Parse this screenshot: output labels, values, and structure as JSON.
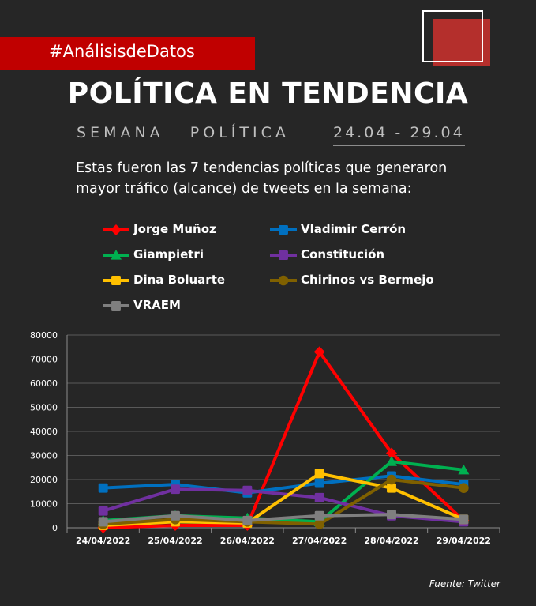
{
  "header": {
    "hashtag": "#AnálisisdeDatos",
    "title": "POLÍTICA EN TENDENCIA",
    "subtitle": "SEMANA   POLÍTICA",
    "dates": "24.04 - 29.04",
    "intro": "Estas fueron las 7 tendencias políticas que generaron mayor tráfico (alcance) de tweets en la semana:"
  },
  "source": "Fuente: Twitter",
  "colors": {
    "background": "#262626",
    "brand_red": "#c00000",
    "grid": "#595959"
  },
  "chart_data": {
    "type": "line",
    "categories": [
      "24/04/2022",
      "25/04/2022",
      "26/04/2022",
      "27/04/2022",
      "28/04/2022",
      "29/04/2022"
    ],
    "ylim": [
      0,
      80000
    ],
    "yticks": [
      "80000",
      "70000",
      "60000",
      "50000",
      "40000",
      "30000",
      "20000",
      "10000",
      "0"
    ],
    "grid": true,
    "legend_position": "top",
    "series": [
      {
        "name": "Jorge Muñoz",
        "color": "#ff0000",
        "marker": "diamond",
        "values": [
          0,
          1000,
          1000,
          73000,
          31000,
          3000
        ]
      },
      {
        "name": "Vladimir Cerrón",
        "color": "#0070c0",
        "marker": "square",
        "values": [
          16500,
          18000,
          14500,
          18500,
          21500,
          18000
        ]
      },
      {
        "name": "Giampietri",
        "color": "#00b050",
        "marker": "triangle",
        "values": [
          3000,
          5000,
          4000,
          2500,
          27500,
          24000
        ]
      },
      {
        "name": "Constitución",
        "color": "#7030a0",
        "marker": "square",
        "values": [
          7000,
          16000,
          15500,
          12500,
          5000,
          2500
        ]
      },
      {
        "name": "Dina Boluarte",
        "color": "#ffc000",
        "marker": "square",
        "values": [
          1000,
          2500,
          2000,
          22500,
          16500,
          3500
        ]
      },
      {
        "name": "Chirinos vs Bermejo",
        "color": "#7f6000",
        "marker": "circle",
        "values": [
          1500,
          3500,
          2500,
          1500,
          20000,
          16500
        ]
      },
      {
        "name": "VRAEM",
        "color": "#7f7f7f",
        "marker": "square",
        "values": [
          2500,
          5000,
          3000,
          5000,
          5500,
          3500
        ]
      }
    ]
  }
}
